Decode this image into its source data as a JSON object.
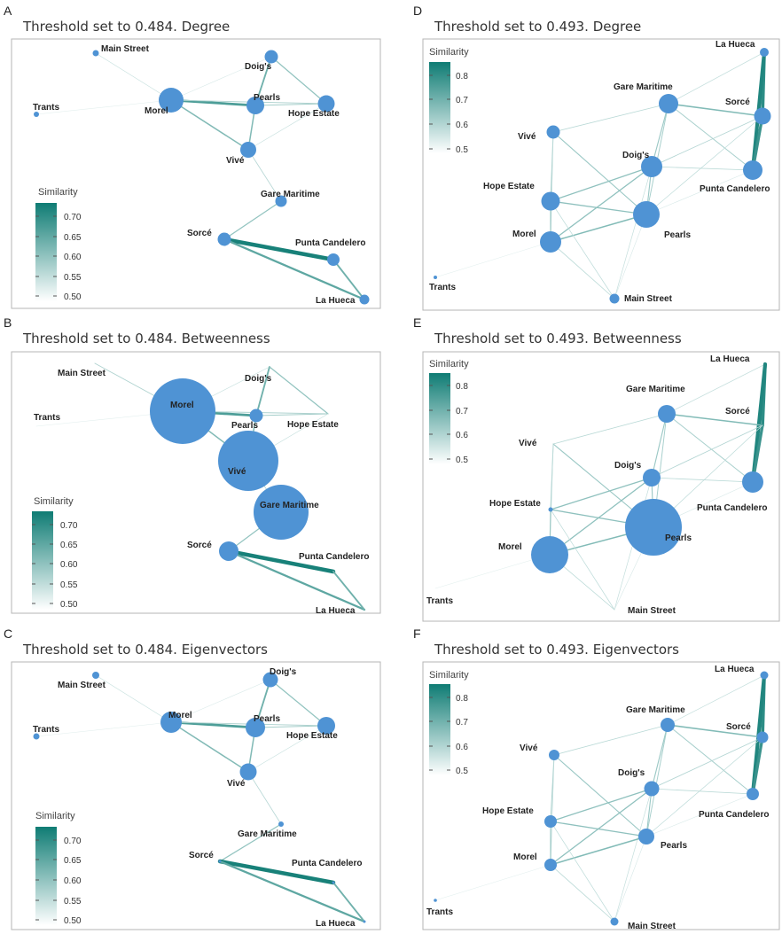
{
  "legend_title": "Similarity",
  "colors": {
    "node": "#4f93d4",
    "edge_low": "#e8f2f1",
    "edge_high": "#0f7c74",
    "frame": "#b5b5b5"
  },
  "panels": [
    {
      "letter": "A",
      "title": "Threshold set to 0.484. Degree",
      "legend_ticks": [
        "0.70",
        "0.65",
        "0.60",
        "0.55",
        "0.50"
      ],
      "legend_range": [
        0.484,
        0.73
      ]
    },
    {
      "letter": "B",
      "title": "Threshold set to 0.484. Betweenness",
      "legend_ticks": [
        "0.70",
        "0.65",
        "0.60",
        "0.55",
        "0.50"
      ],
      "legend_range": [
        0.484,
        0.73
      ]
    },
    {
      "letter": "C",
      "title": "Threshold set to 0.484. Eigenvectors",
      "legend_ticks": [
        "0.70",
        "0.65",
        "0.60",
        "0.55",
        "0.50"
      ],
      "legend_range": [
        0.484,
        0.73
      ]
    },
    {
      "letter": "D",
      "title": "Threshold set to 0.493. Degree",
      "legend_ticks": [
        "0.8",
        "0.7",
        "0.6",
        "0.5"
      ],
      "legend_range": [
        0.493,
        0.85
      ]
    },
    {
      "letter": "E",
      "title": "Threshold set to 0.493. Betweenness",
      "legend_ticks": [
        "0.8",
        "0.7",
        "0.6",
        "0.5"
      ],
      "legend_range": [
        0.493,
        0.85
      ]
    },
    {
      "letter": "F",
      "title": "Threshold set to 0.493. Eigenvectors",
      "legend_ticks": [
        "0.8",
        "0.7",
        "0.6",
        "0.5"
      ],
      "legend_range": [
        0.493,
        0.85
      ]
    }
  ],
  "node_names": [
    "Main Street",
    "Trants",
    "Morel",
    "Doig's",
    "Pearls",
    "Hope Estate",
    "Vivé",
    "Gare Maritime",
    "Sorcé",
    "Punta Candelero",
    "La Hueca"
  ]
}
